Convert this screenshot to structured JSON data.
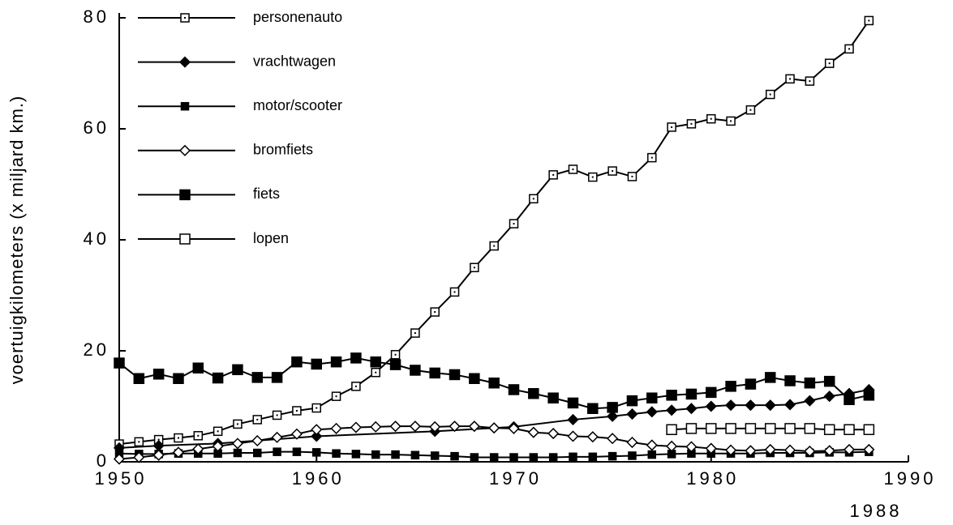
{
  "chart_data": {
    "type": "line",
    "y_label": "voertuigkilometers (x miljard km.)",
    "annotation": "1988",
    "xlim": [
      1950,
      1990
    ],
    "xticks": [
      1950,
      1960,
      1970,
      1980,
      1990
    ],
    "ylim": [
      0,
      80
    ],
    "yticks": [
      0,
      20,
      40,
      60,
      80
    ],
    "grid": false,
    "legend": "upper left",
    "series": [
      {
        "name": "personenauto",
        "color": "#000",
        "marker": "dotted-square",
        "x": [
          1950,
          1951,
          1952,
          1953,
          1954,
          1955,
          1956,
          1957,
          1958,
          1959,
          1960,
          1961,
          1962,
          1963,
          1964,
          1965,
          1966,
          1967,
          1968,
          1969,
          1970,
          1971,
          1972,
          1973,
          1974,
          1975,
          1976,
          1977,
          1978,
          1979,
          1980,
          1981,
          1982,
          1983,
          1984,
          1985,
          1986,
          1987,
          1988
        ],
        "values": [
          3.2,
          3.6,
          4.0,
          4.3,
          4.7,
          5.5,
          6.8,
          7.6,
          8.4,
          9.2,
          9.7,
          11.8,
          13.6,
          16.1,
          19.3,
          23.2,
          27.0,
          30.6,
          35.0,
          38.9,
          42.9,
          47.4,
          51.7,
          52.7,
          51.3,
          52.4,
          51.4,
          54.8,
          60.3,
          60.9,
          61.8,
          61.4,
          63.4,
          66.2,
          69.0,
          68.6,
          71.8,
          74.4,
          79.5
        ]
      },
      {
        "name": "vrachtwagen",
        "color": "#000",
        "marker": "diamond",
        "x": [
          1950,
          1952,
          1955,
          1960,
          1966,
          1970,
          1973,
          1975,
          1976,
          1977,
          1978,
          1979,
          1980,
          1981,
          1982,
          1983,
          1984,
          1985,
          1986,
          1987,
          1988
        ],
        "values": [
          2.5,
          2.9,
          3.3,
          4.6,
          5.5,
          6.3,
          7.6,
          8.2,
          8.6,
          9.0,
          9.3,
          9.6,
          10.0,
          10.2,
          10.2,
          10.2,
          10.3,
          11.0,
          11.8,
          12.3,
          13.0
        ]
      },
      {
        "name": "motor/scooter",
        "color": "#000",
        "marker": "small-square",
        "x": [
          1950,
          1951,
          1952,
          1953,
          1954,
          1955,
          1956,
          1957,
          1958,
          1959,
          1960,
          1961,
          1962,
          1963,
          1964,
          1965,
          1966,
          1967,
          1968,
          1969,
          1970,
          1971,
          1972,
          1973,
          1974,
          1975,
          1976,
          1977,
          1978,
          1979,
          1980,
          1981,
          1982,
          1983,
          1984,
          1985,
          1986,
          1987,
          1988
        ],
        "values": [
          1.5,
          1.4,
          1.4,
          1.5,
          1.5,
          1.5,
          1.6,
          1.6,
          1.8,
          1.8,
          1.7,
          1.5,
          1.4,
          1.3,
          1.3,
          1.2,
          1.1,
          1.0,
          0.8,
          0.8,
          0.8,
          0.8,
          0.8,
          0.9,
          0.9,
          1.0,
          1.1,
          1.3,
          1.4,
          1.5,
          1.5,
          1.5,
          1.5,
          1.6,
          1.6,
          1.6,
          1.7,
          1.7,
          1.8
        ]
      },
      {
        "name": "bromfiets",
        "color": "#000",
        "marker": "open-diamond",
        "x": [
          1950,
          1951,
          1952,
          1953,
          1954,
          1955,
          1956,
          1957,
          1958,
          1959,
          1960,
          1961,
          1962,
          1963,
          1964,
          1965,
          1966,
          1967,
          1968,
          1969,
          1970,
          1971,
          1972,
          1973,
          1974,
          1975,
          1976,
          1977,
          1978,
          1979,
          1980,
          1981,
          1982,
          1983,
          1984,
          1985,
          1986,
          1987,
          1988
        ],
        "values": [
          0.5,
          0.8,
          1.2,
          1.7,
          2.3,
          2.8,
          3.3,
          3.8,
          4.4,
          5.0,
          5.8,
          6.0,
          6.2,
          6.3,
          6.4,
          6.4,
          6.3,
          6.4,
          6.4,
          6.1,
          6.0,
          5.3,
          5.1,
          4.6,
          4.5,
          4.2,
          3.5,
          3.0,
          2.8,
          2.7,
          2.4,
          2.1,
          2.0,
          2.2,
          2.1,
          1.9,
          2.0,
          2.2,
          2.2
        ]
      },
      {
        "name": "fiets",
        "color": "#000",
        "marker": "square",
        "x": [
          1950,
          1951,
          1952,
          1953,
          1954,
          1955,
          1956,
          1957,
          1958,
          1959,
          1960,
          1961,
          1962,
          1963,
          1964,
          1965,
          1966,
          1967,
          1968,
          1969,
          1970,
          1971,
          1972,
          1973,
          1974,
          1975,
          1976,
          1977,
          1978,
          1979,
          1980,
          1981,
          1982,
          1983,
          1984,
          1985,
          1986,
          1987,
          1988
        ],
        "values": [
          17.8,
          15.0,
          15.8,
          15.0,
          16.9,
          15.1,
          16.6,
          15.2,
          15.2,
          18.0,
          17.6,
          18.0,
          18.7,
          18.0,
          17.5,
          16.5,
          16.0,
          15.7,
          15.0,
          14.2,
          13.0,
          12.3,
          11.5,
          10.6,
          9.6,
          9.8,
          11.0,
          11.5,
          12.0,
          12.2,
          12.5,
          13.6,
          14.0,
          15.2,
          14.6,
          14.2,
          14.5,
          11.2,
          12.0
        ]
      },
      {
        "name": "lopen",
        "color": "#000",
        "marker": "open-square",
        "x": [
          1978,
          1979,
          1980,
          1981,
          1982,
          1983,
          1984,
          1985,
          1986,
          1987,
          1988
        ],
        "values": [
          5.8,
          6.0,
          6.0,
          6.0,
          6.0,
          6.0,
          6.0,
          6.0,
          5.8,
          5.8,
          5.8
        ]
      }
    ]
  }
}
